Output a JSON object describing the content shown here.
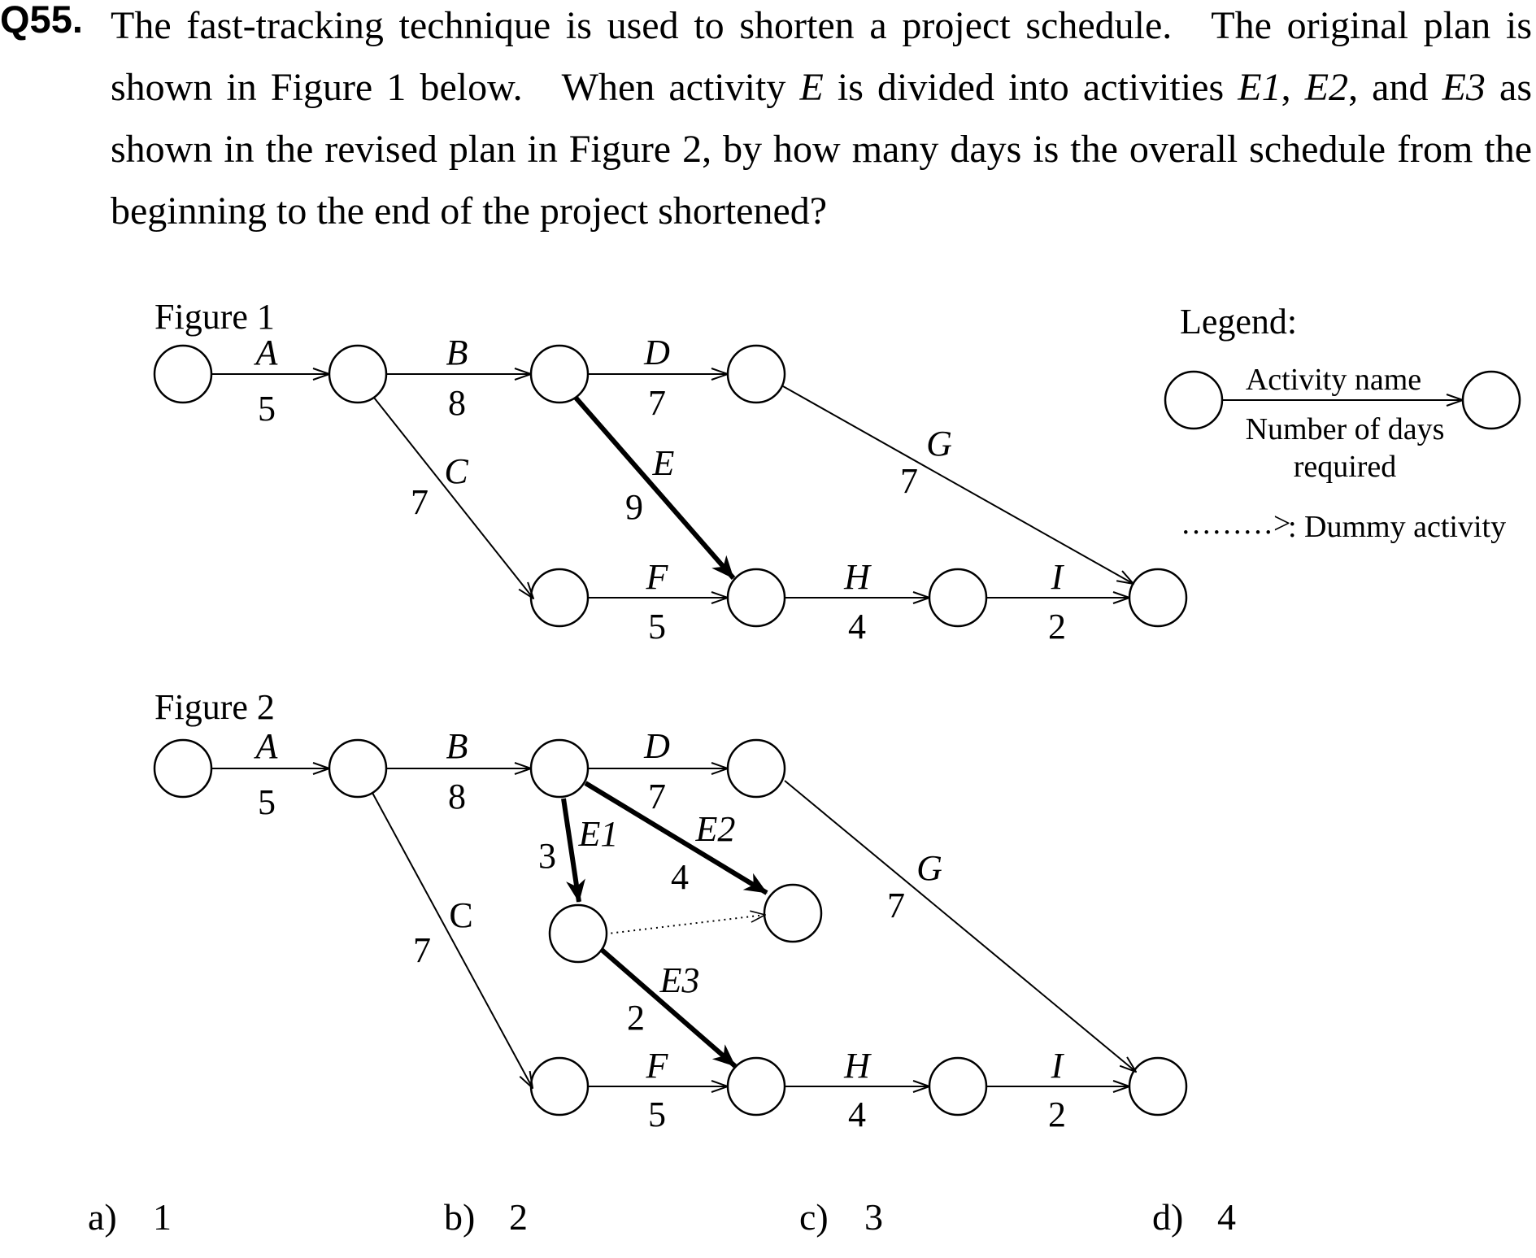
{
  "question": {
    "number": "Q55.",
    "parts": [
      "The fast-tracking technique is used to shorten a project schedule. The original plan is shown in Figure 1 below. When activity ",
      "E",
      " is divided into activities ",
      "E1",
      ", ",
      "E2",
      ", and ",
      "E3",
      " as shown in the revised plan in Figure 2, by how many days is the overall schedule from the beginning to the end of the project shortened?"
    ]
  },
  "figure1": {
    "title": "Figure 1",
    "activities": [
      {
        "name": "A",
        "days": "5"
      },
      {
        "name": "B",
        "days": "8"
      },
      {
        "name": "C",
        "days": "7"
      },
      {
        "name": "D",
        "days": "7"
      },
      {
        "name": "E",
        "days": "9"
      },
      {
        "name": "F",
        "days": "5"
      },
      {
        "name": "G",
        "days": "7"
      },
      {
        "name": "H",
        "days": "4"
      },
      {
        "name": "I",
        "days": "2"
      }
    ]
  },
  "figure2": {
    "title": "Figure 2",
    "activities": [
      {
        "name": "A",
        "days": "5"
      },
      {
        "name": "B",
        "days": "8"
      },
      {
        "name": "C",
        "days": "7"
      },
      {
        "name": "D",
        "days": "7"
      },
      {
        "name": "E1",
        "days": "3"
      },
      {
        "name": "E2",
        "days": "4"
      },
      {
        "name": "E3",
        "days": "2"
      },
      {
        "name": "F",
        "days": "5"
      },
      {
        "name": "G",
        "days": "7"
      },
      {
        "name": "H",
        "days": "4"
      },
      {
        "name": "I",
        "days": "2"
      }
    ]
  },
  "legend": {
    "title": "Legend:",
    "activity_name": "Activity name",
    "days_line1": "Number of days",
    "days_line2": "required",
    "dummy_symbol": "………>",
    "dummy_text": ": Dummy activity"
  },
  "options": [
    {
      "label": "a)",
      "value": "1"
    },
    {
      "label": "b)",
      "value": "2"
    },
    {
      "label": "c)",
      "value": "3"
    },
    {
      "label": "d)",
      "value": "4"
    }
  ]
}
